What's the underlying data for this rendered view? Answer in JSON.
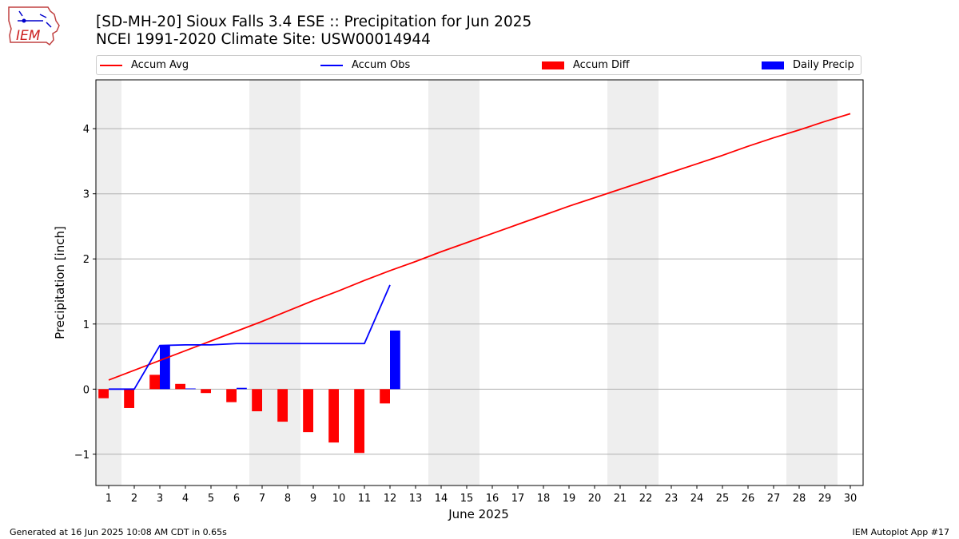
{
  "logo_text": "IEM",
  "title": "[SD-MH-20] Sioux Falls 3.4 ESE :: Precipitation for Jun 2025",
  "subtitle": "NCEI 1991-2020 Climate Site: USW00014944",
  "footer_left": "Generated at 16 Jun 2025 10:08 AM CDT in 0.65s",
  "footer_right": "IEM Autoplot App #17",
  "colors": {
    "avg": "#ff0000",
    "obs": "#0000ff",
    "diff": "#ff0000",
    "daily": "#0000ff",
    "weekend": "#eeeeee",
    "grid": "#b0b0b0"
  },
  "legend": [
    {
      "label": "Accum Avg",
      "kind": "line",
      "color": "#ff0000"
    },
    {
      "label": "Accum Obs",
      "kind": "line",
      "color": "#0000ff"
    },
    {
      "label": "Accum Diff",
      "kind": "bar",
      "color": "#ff0000"
    },
    {
      "label": "Daily Precip",
      "kind": "bar",
      "color": "#0000ff"
    }
  ],
  "chart_data": {
    "type": "bar",
    "xlabel": "June 2025",
    "ylabel": "Precipitation [inch]",
    "xlim": [
      0.5,
      30.5
    ],
    "ylim": [
      -1.48,
      4.75
    ],
    "grid": "horizontal",
    "x_ticks": [
      1,
      2,
      3,
      4,
      5,
      6,
      7,
      8,
      9,
      10,
      11,
      12,
      13,
      14,
      15,
      16,
      17,
      18,
      19,
      20,
      21,
      22,
      23,
      24,
      25,
      26,
      27,
      28,
      29,
      30
    ],
    "y_ticks": [
      -1,
      0,
      1,
      2,
      3,
      4
    ],
    "y_tick_labels": [
      "−1",
      "0",
      "1",
      "2",
      "3",
      "4"
    ],
    "weekend_days": [
      1,
      7,
      8,
      14,
      15,
      21,
      22,
      28,
      29
    ],
    "series": [
      {
        "name": "Accum Avg",
        "type": "line",
        "x": [
          1,
          2,
          3,
          4,
          5,
          6,
          7,
          8,
          9,
          10,
          11,
          12,
          13,
          14,
          15,
          16,
          17,
          18,
          19,
          20,
          21,
          22,
          23,
          24,
          25,
          26,
          27,
          28,
          29,
          30
        ],
        "values": [
          0.14,
          0.29,
          0.44,
          0.59,
          0.74,
          0.89,
          1.04,
          1.2,
          1.36,
          1.51,
          1.67,
          1.82,
          1.96,
          2.11,
          2.25,
          2.39,
          2.53,
          2.67,
          2.81,
          2.94,
          3.07,
          3.2,
          3.33,
          3.46,
          3.59,
          3.73,
          3.86,
          3.98,
          4.11,
          4.23
        ]
      },
      {
        "name": "Accum Obs",
        "type": "line",
        "x": [
          1,
          2,
          3,
          4,
          5,
          6,
          7,
          8,
          9,
          10,
          11,
          12
        ],
        "values": [
          0.0,
          0.0,
          0.67,
          0.68,
          0.68,
          0.7,
          0.7,
          0.7,
          0.7,
          0.7,
          0.7,
          1.6
        ]
      },
      {
        "name": "Accum Diff",
        "type": "bar",
        "x": [
          1,
          2,
          3,
          4,
          5,
          6,
          7,
          8,
          9,
          10,
          11,
          12
        ],
        "values": [
          -0.14,
          -0.29,
          0.22,
          0.08,
          -0.06,
          -0.2,
          -0.34,
          -0.5,
          -0.66,
          -0.82,
          -0.98,
          -0.22
        ]
      },
      {
        "name": "Daily Precip",
        "type": "bar",
        "x": [
          1,
          2,
          3,
          4,
          5,
          6,
          7,
          8,
          9,
          10,
          11,
          12
        ],
        "values": [
          0.0,
          0.0,
          0.67,
          0.01,
          0.0,
          0.02,
          0.0,
          0.0,
          0.0,
          0.0,
          0.0,
          0.9
        ]
      }
    ]
  }
}
